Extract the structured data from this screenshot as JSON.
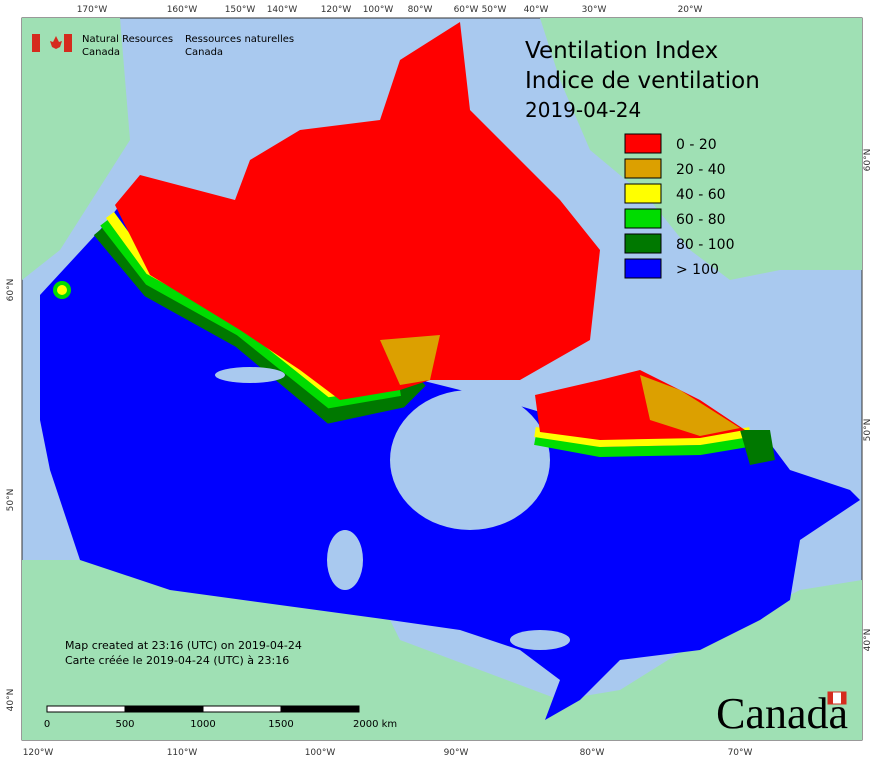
{
  "header": {
    "agency_en": "Natural Resources",
    "agency_en_2": "Canada",
    "agency_fr": "Ressources naturelles",
    "agency_fr_2": "Canada"
  },
  "title": {
    "line1": "Ventilation Index",
    "line2": "Indice de ventilation",
    "date": "2019-04-24"
  },
  "legend": [
    {
      "label": "0 - 20",
      "color": "#ff0000"
    },
    {
      "label": "20 - 40",
      "color": "#dca000"
    },
    {
      "label": "40 - 60",
      "color": "#ffff00"
    },
    {
      "label": "60 - 80",
      "color": "#00dc00"
    },
    {
      "label": "80 - 100",
      "color": "#007800"
    },
    {
      "label": "> 100",
      "color": "#0000ff"
    }
  ],
  "graticule": {
    "top": [
      "170°W",
      "160°W",
      "150°W",
      "140°W",
      "120°W",
      "100°W",
      "80°W",
      "60°W",
      "50°W",
      "40°W",
      "30°W",
      "20°W"
    ],
    "bottom": [
      "120°W",
      "110°W",
      "100°W",
      "90°W",
      "80°W",
      "70°W"
    ],
    "left": [
      "60°N",
      "50°N",
      "40°N"
    ],
    "right": [
      "60°N",
      "50°N",
      "40°N"
    ]
  },
  "notes": {
    "en": "Map created at 23:16 (UTC) on 2019-04-24",
    "fr": "Carte créée le 2019-04-24 (UTC) à 23:16"
  },
  "scale_bar": [
    "0",
    "500",
    "1000",
    "1500",
    "2000 km"
  ],
  "wordmark": "Canada"
}
